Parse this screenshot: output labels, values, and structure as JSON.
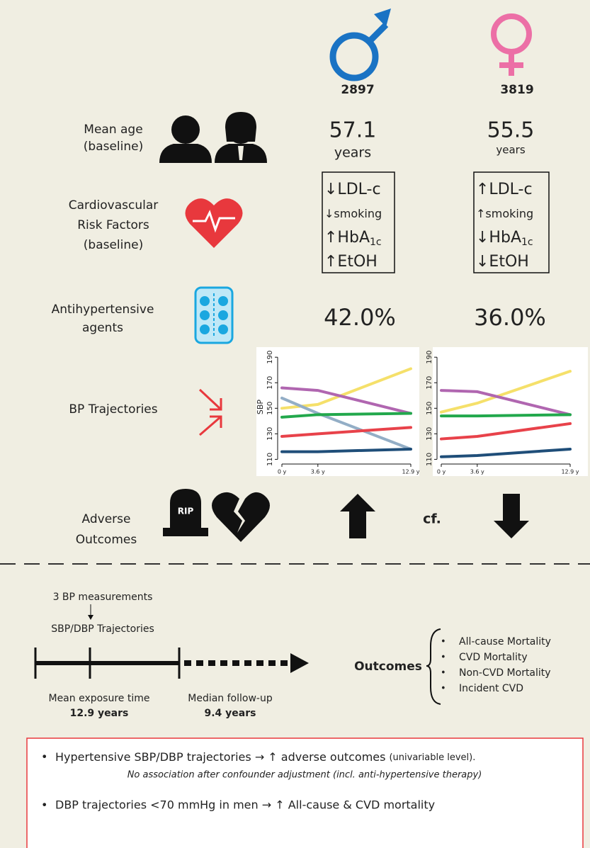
{
  "groups": [
    {
      "count": "2897",
      "age": "57.1",
      "age_unit": "years",
      "risk_factors": [
        {
          "text": "↓LDL-c"
        },
        {
          "text": "↓smoking"
        },
        {
          "text": "↑HbA",
          "sub": "1c"
        },
        {
          "text": "↑EtOH"
        }
      ],
      "antihypertensive": "42.0%"
    },
    {
      "count": "3819",
      "age": "55.5",
      "age_unit": "years",
      "risk_factors": [
        {
          "text": "↑LDL-c"
        },
        {
          "text": "↑smoking"
        },
        {
          "text": "↓HbA",
          "sub": "1c"
        },
        {
          "text": "↓EtOH"
        }
      ],
      "antihypertensive": "36.0%"
    }
  ],
  "rows": {
    "age": [
      "Mean age",
      "(baseline)"
    ],
    "risk": [
      "Cardiovascular",
      "Risk Factors",
      "(baseline)"
    ],
    "agents": [
      "Antihypertensive",
      "agents"
    ],
    "trajectories": [
      "BP Trajectories"
    ],
    "outcomes": [
      "Adverse",
      "Outcomes"
    ]
  },
  "rip": "RIP",
  "compare": "cf.",
  "charts": [
    {
      "type": "line",
      "ylabel": "SBP",
      "x": [
        0,
        3.6,
        12.9
      ],
      "xlim": [
        0,
        12.9
      ],
      "xticks": [
        {
          "value": 0,
          "label": "0 y"
        },
        {
          "value": 3.6,
          "label": "3.6 y"
        },
        {
          "value": 12.9,
          "label": "12.9 y"
        }
      ],
      "ylim": [
        108,
        194
      ],
      "yticks": [
        110,
        130,
        150,
        170,
        190
      ],
      "series": [
        {
          "color": "#f5e06a",
          "values": [
            150,
            153,
            181
          ]
        },
        {
          "color": "#b066b0",
          "values": [
            166,
            164,
            146
          ]
        },
        {
          "color": "#93aec6",
          "values": [
            158,
            146,
            118
          ]
        },
        {
          "color": "#22a84c",
          "values": [
            143,
            145,
            146
          ]
        },
        {
          "color": "#e8424a",
          "values": [
            128,
            130,
            135
          ]
        },
        {
          "color": "#1f4e79",
          "values": [
            116,
            116,
            118
          ]
        }
      ]
    },
    {
      "type": "line",
      "x": [
        0,
        3.6,
        12.9
      ],
      "xlim": [
        0,
        12.9
      ],
      "xticks": [
        {
          "value": 0,
          "label": "0 y"
        },
        {
          "value": 3.6,
          "label": "3.6 y"
        },
        {
          "value": 12.9,
          "label": "12.9 y"
        }
      ],
      "ylim": [
        108,
        194
      ],
      "yticks": [
        110,
        130,
        150,
        170,
        190
      ],
      "series": [
        {
          "color": "#f5e06a",
          "values": [
            147,
            154,
            179
          ]
        },
        {
          "color": "#b066b0",
          "values": [
            164,
            163,
            145
          ]
        },
        {
          "color": "#22a84c",
          "values": [
            144,
            144,
            145
          ]
        },
        {
          "color": "#e8424a",
          "values": [
            126,
            128,
            138
          ]
        },
        {
          "color": "#1f4e79",
          "values": [
            112,
            113,
            118
          ]
        }
      ]
    }
  ],
  "design": {
    "measurements": "3 BP measurements",
    "trajectories": "SBP/DBP Trajectories",
    "exposure_label": "Mean exposure time",
    "exposure_value": "12.9 years",
    "followup_label": "Median follow-up",
    "followup_value": "9.4 years",
    "outcomes_title": "Outcomes",
    "outcomes": [
      "All-cause Mortality",
      "CVD Mortality",
      "Non-CVD Mortality",
      "Incident CVD"
    ]
  },
  "findings": [
    {
      "main": "Hypertensive SBP/DBP trajectories → ↑ adverse outcomes",
      "note": "(univariable level).",
      "detail": "No association after confounder adjustment (incl. anti-hypertensive therapy)"
    },
    {
      "main": "DBP trajectories <70 mmHg in men → ↑ All-cause & CVD mortality"
    }
  ]
}
